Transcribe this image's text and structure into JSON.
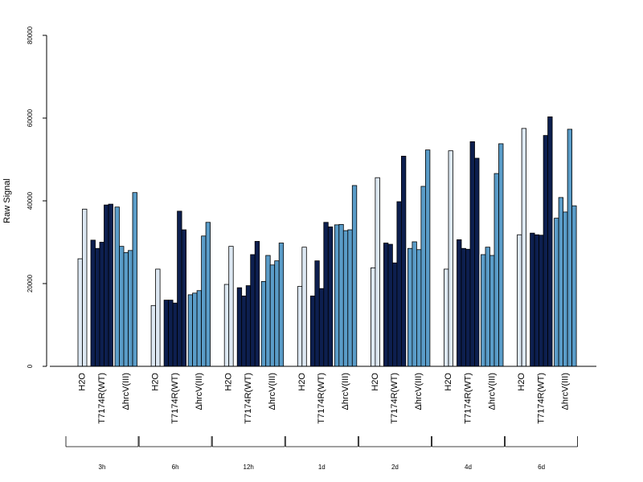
{
  "chart_data": {
    "type": "bar",
    "ylabel": "Raw Signal",
    "ylim": [
      0,
      80000
    ],
    "yticks": [
      "0",
      "20000",
      "40000",
      "60000",
      "80000"
    ],
    "grid": false,
    "colors": {
      "H2O": "#dde8f3",
      "T7174R(WT)": "#0d1f4f",
      "ΔhrcV(III)": "#5a9cc8"
    },
    "condition_labels": [
      "H2O",
      "T7174R(WT)",
      "ΔhrcV(III)"
    ],
    "groups": [
      {
        "name": "3h",
        "H2O": [
          26000,
          38000
        ],
        "T7174R(WT)": [
          30500,
          28500,
          30000,
          39000,
          39200
        ],
        "ΔhrcV(III)": [
          38500,
          29000,
          27500,
          28000,
          42000
        ]
      },
      {
        "name": "6h",
        "H2O": [
          14700,
          23500
        ],
        "T7174R(WT)": [
          16000,
          16000,
          15300,
          37500,
          33000
        ],
        "ΔhrcV(III)": [
          17300,
          17700,
          18300,
          31500,
          34800
        ]
      },
      {
        "name": "12h",
        "H2O": [
          19800,
          29000
        ],
        "T7174R(WT)": [
          19000,
          17000,
          19500,
          27000,
          30200
        ],
        "ΔhrcV(III)": [
          20500,
          26800,
          24500,
          25500,
          29800
        ]
      },
      {
        "name": "1d",
        "H2O": [
          19300,
          28800
        ],
        "T7174R(WT)": [
          17000,
          25500,
          18800,
          34800,
          33700
        ],
        "ΔhrcV(III)": [
          34200,
          34300,
          32800,
          33000,
          43700
        ]
      },
      {
        "name": "2d",
        "H2O": [
          23800,
          45600
        ],
        "T7174R(WT)": [
          29800,
          29500,
          25000,
          39800,
          50800
        ],
        "ΔhrcV(III)": [
          28500,
          30100,
          28200,
          43500,
          52300
        ]
      },
      {
        "name": "4d",
        "H2O": [
          23500,
          52100
        ],
        "T7174R(WT)": [
          30600,
          28500,
          28300,
          54300,
          50300
        ],
        "ΔhrcV(III)": [
          27000,
          28800,
          26800,
          46600,
          53800
        ]
      },
      {
        "name": "6d",
        "H2O": [
          31800,
          57500
        ],
        "T7174R(WT)": [
          32200,
          31800,
          31700,
          55800,
          60300
        ],
        "ΔhrcV(III)": [
          35800,
          40800,
          37300,
          57300,
          38800
        ]
      }
    ]
  }
}
